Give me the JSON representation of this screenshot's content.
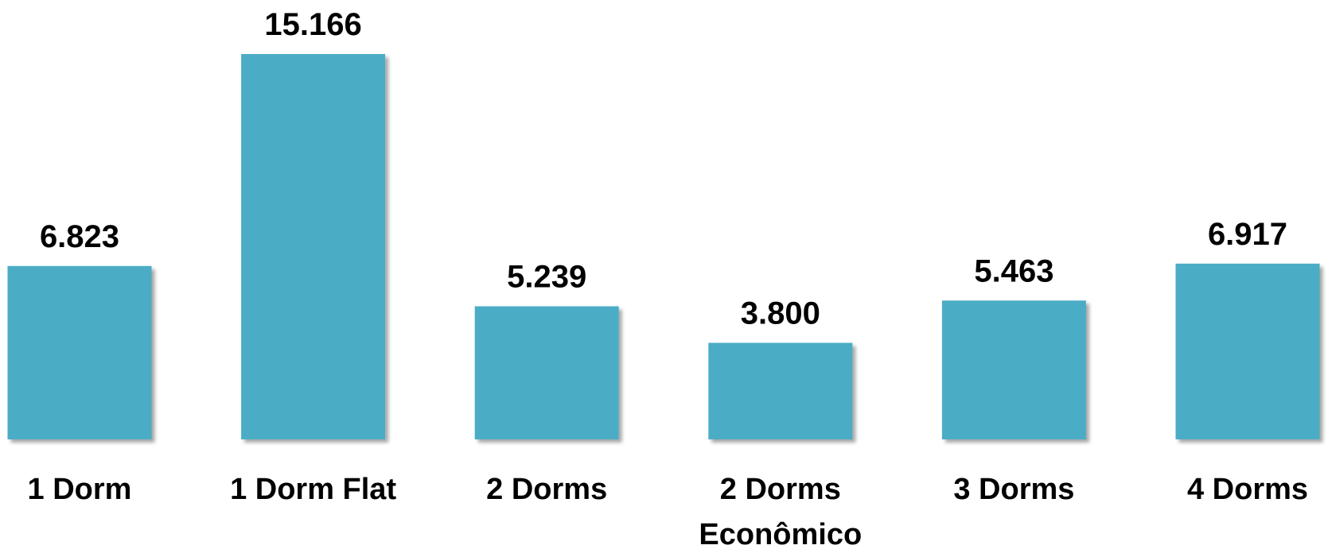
{
  "chart_data": {
    "type": "bar",
    "categories": [
      "1 Dorm",
      "1 Dorm Flat",
      "2 Dorms",
      "2 Dorms Econômico",
      "3 Dorms",
      "4 Dorms"
    ],
    "category_lines": [
      [
        "1 Dorm"
      ],
      [
        "1 Dorm Flat"
      ],
      [
        "2 Dorms"
      ],
      [
        "2 Dorms",
        "Econômico"
      ],
      [
        "3 Dorms"
      ],
      [
        "4 Dorms"
      ]
    ],
    "values": [
      6823,
      15166,
      5239,
      3800,
      5463,
      6917
    ],
    "value_labels": [
      "6.823",
      "15.166",
      "5.239",
      "3.800",
      "5.463",
      "6.917"
    ],
    "title": "",
    "xlabel": "",
    "ylabel": "",
    "ylim": [
      0,
      15166
    ],
    "grid": false,
    "legend": "none",
    "bar_color": "#4BACC6"
  }
}
